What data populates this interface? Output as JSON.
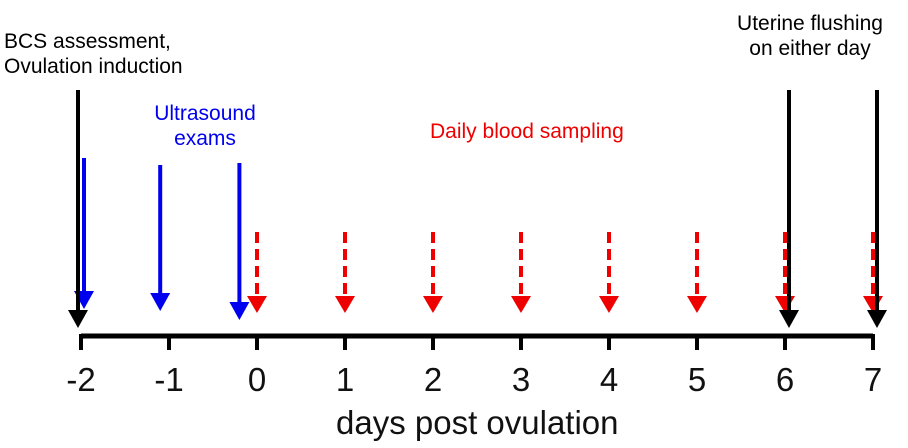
{
  "annotations": {
    "bcs_label": [
      "BCS assessment,",
      "Ovulation induction"
    ],
    "ultrasound_label": [
      "Ultrasound",
      "exams"
    ],
    "blood_label": "Daily blood sampling",
    "flushing_label": [
      "Uterine flushing",
      "on either day"
    ]
  },
  "axis": {
    "title": "days post ovulation",
    "ticks": [
      "-2",
      "-1",
      "0",
      "1",
      "2",
      "3",
      "4",
      "5",
      "6",
      "7"
    ],
    "tick_values": [
      -2,
      -1,
      0,
      1,
      2,
      3,
      4,
      5,
      6,
      7
    ]
  },
  "events": {
    "bcs_day": -2,
    "ultrasound_days": [
      -2,
      -1.1,
      -0.2
    ],
    "blood_days": [
      0,
      1,
      2,
      3,
      4,
      5,
      6,
      7
    ],
    "flushing_days": [
      6,
      7
    ]
  },
  "colors": {
    "black": "#000000",
    "blue": "#0000ee",
    "red": "#ee0000"
  }
}
